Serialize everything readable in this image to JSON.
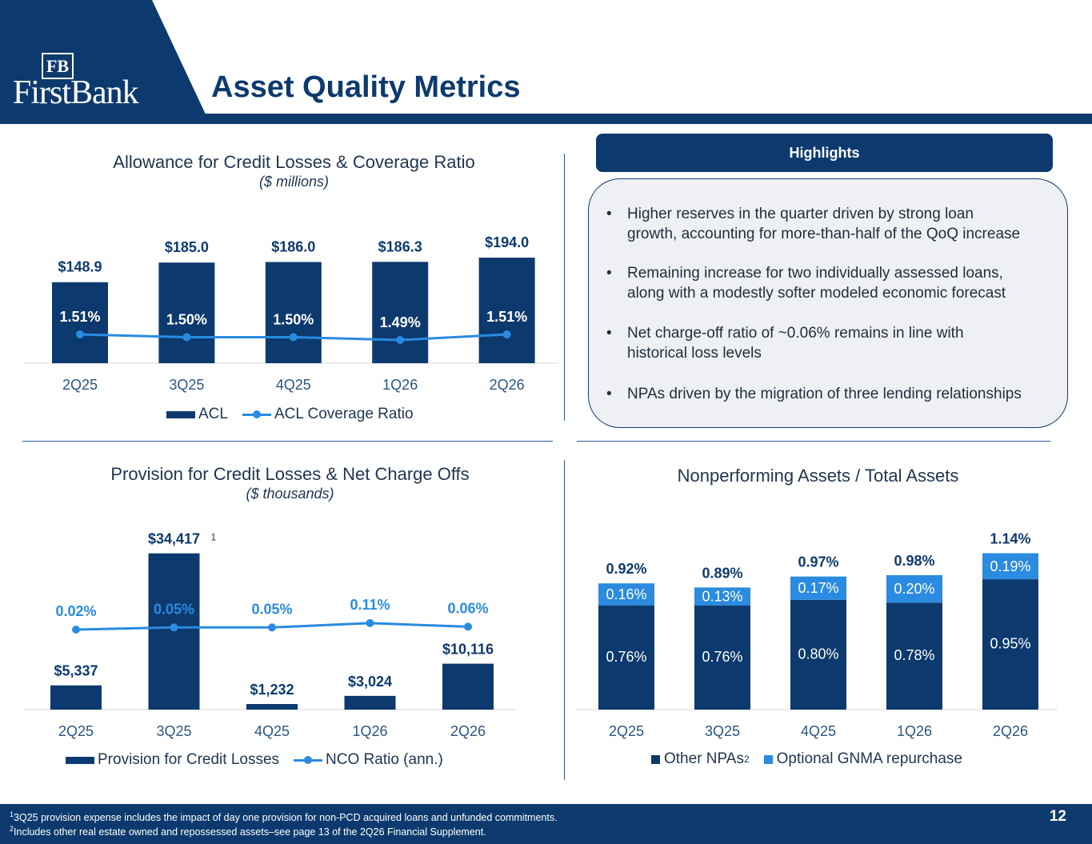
{
  "header": {
    "logo_monogram": "FB",
    "logo_text": "FirstBank",
    "title": "Asset Quality Metrics"
  },
  "acl_section": {
    "title": "Allowance for Credit Losses & Coverage Ratio",
    "subtitle": "($ millions)",
    "legend_bar": "ACL",
    "legend_line": "ACL Coverage Ratio"
  },
  "provision_section": {
    "title": "Provision for Credit Losses & Net Charge Offs",
    "subtitle": "($ thousands)",
    "legend_bar": "Provision for Credit Losses",
    "legend_line": "NCO Ratio (ann.)"
  },
  "npa_section": {
    "title": "Nonperforming Assets / Total Assets",
    "legend_other": "Other NPAs",
    "legend_other_sup": "2",
    "legend_gnma": "Optional GNMA repurchase"
  },
  "highlights": {
    "header": "Highlights",
    "items": [
      {
        "line1": "Higher reserves in the quarter driven by strong loan",
        "line2": "growth, accounting for more-than-half of the QoQ increase"
      },
      {
        "line1": "Remaining increase for two individually assessed loans,",
        "line2": "along with a modestly softer modeled economic forecast"
      },
      {
        "line1": "Net charge-off ratio of ~0.06% remains in line with",
        "line2": "historical loss levels"
      },
      {
        "line1": "NPAs driven by the migration of three lending relationships",
        "line2": ""
      }
    ],
    "bullet": "•"
  },
  "footer": {
    "note1_sup": "1",
    "note1": "3Q25 provision expense includes the impact of day one provision for non-PCD acquired loans and unfunded commitments.",
    "note2_sup": "2",
    "note2": "Includes other real estate owned and repossessed assets–see page 13 of the 2Q26 Financial Supplement.",
    "page_number": "12"
  },
  "colors": {
    "navy": "#0d3a6e",
    "line_blue": "#2a8be0",
    "gnma_blue": "#2a8be0",
    "label_blue": "#1e6bc4"
  },
  "chart_data": [
    {
      "type": "bar",
      "title": "Allowance for Credit Losses & Coverage Ratio",
      "subtitle": "($ millions)",
      "categories": [
        "2Q25",
        "3Q25",
        "4Q25",
        "1Q26",
        "2Q26"
      ],
      "series": [
        {
          "name": "ACL",
          "type": "bar",
          "values": [
            148.9,
            185.0,
            186.0,
            186.3,
            194.0
          ],
          "labels": [
            "$148.9",
            "$185.0",
            "$186.0",
            "$186.3",
            "$194.0"
          ]
        },
        {
          "name": "ACL Coverage Ratio",
          "type": "line",
          "values": [
            1.51,
            1.5,
            1.5,
            1.49,
            1.51
          ],
          "labels": [
            "1.51%",
            "1.50%",
            "1.50%",
            "1.49%",
            "1.51%"
          ]
        }
      ],
      "legend": "bottom"
    },
    {
      "type": "bar",
      "title": "Provision for Credit Losses & Net Charge Offs",
      "subtitle": "($ thousands)",
      "categories": [
        "2Q25",
        "3Q25",
        "4Q25",
        "1Q26",
        "2Q26"
      ],
      "series": [
        {
          "name": "Provision for Credit Losses",
          "type": "bar",
          "values": [
            5337,
            34417,
            1232,
            3024,
            10116
          ],
          "labels": [
            "$5,337",
            "$34,417",
            "$1,232",
            "$3,024",
            "$10,116"
          ]
        },
        {
          "name": "NCO Ratio (ann.)",
          "type": "line",
          "values": [
            0.02,
            0.05,
            0.05,
            0.11,
            0.06
          ],
          "labels": [
            "0.02%",
            "0.05%",
            "0.05%",
            "0.11%",
            "0.06%"
          ]
        }
      ],
      "annotation": {
        "category": "3Q25",
        "text": "1"
      },
      "legend": "bottom"
    },
    {
      "type": "bar",
      "stacked": true,
      "title": "Nonperforming Assets / Total Assets",
      "categories": [
        "2Q25",
        "3Q25",
        "4Q25",
        "1Q26",
        "2Q26"
      ],
      "series": [
        {
          "name": "Other NPAs",
          "values": [
            0.76,
            0.76,
            0.8,
            0.78,
            0.95
          ],
          "labels": [
            "0.76%",
            "0.76%",
            "0.80%",
            "0.78%",
            "0.95%"
          ]
        },
        {
          "name": "Optional GNMA repurchase",
          "values": [
            0.16,
            0.13,
            0.17,
            0.2,
            0.19
          ],
          "labels": [
            "0.16%",
            "0.13%",
            "0.17%",
            "0.20%",
            "0.19%"
          ]
        }
      ],
      "totals": [
        0.92,
        0.89,
        0.97,
        0.98,
        1.14
      ],
      "total_labels": [
        "0.92%",
        "0.89%",
        "0.97%",
        "0.98%",
        "1.14%"
      ],
      "legend": "bottom"
    }
  ]
}
